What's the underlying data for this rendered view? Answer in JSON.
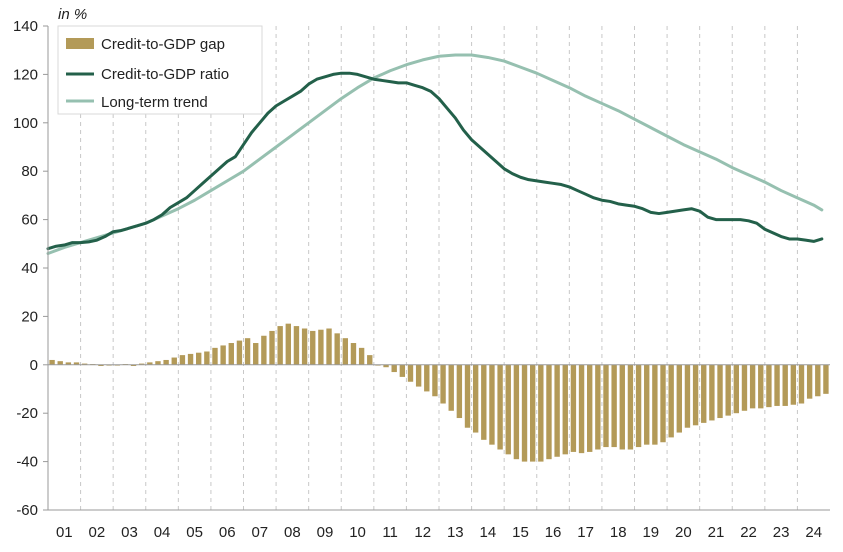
{
  "chart_data": {
    "type": "bar+line",
    "unit_label": "in %",
    "ylim": [
      -60,
      140
    ],
    "yticks": [
      -60,
      -40,
      -20,
      0,
      20,
      40,
      60,
      80,
      100,
      120,
      140
    ],
    "x_labels": [
      "01",
      "02",
      "03",
      "04",
      "05",
      "06",
      "07",
      "08",
      "09",
      "10",
      "11",
      "12",
      "13",
      "14",
      "15",
      "16",
      "17",
      "18",
      "19",
      "20",
      "21",
      "22",
      "23",
      "24"
    ],
    "x_range": [
      2001,
      2025
    ],
    "grid": "dashed vertical gridlines between years",
    "legend_position": "top-left",
    "colors": {
      "gap": "#b39a58",
      "ratio": "#23604a",
      "trend": "#96c0b0",
      "grid": "#c8c8c8",
      "axis": "#9a9a9a"
    },
    "series": [
      {
        "name": "Credit-to-GDP gap",
        "type": "bar",
        "color": "#b39a58",
        "x": [
          2001.0,
          2001.25,
          2001.5,
          2001.75,
          2002.0,
          2002.25,
          2002.5,
          2002.75,
          2003.0,
          2003.25,
          2003.5,
          2003.75,
          2004.0,
          2004.25,
          2004.5,
          2004.75,
          2005.0,
          2005.25,
          2005.5,
          2005.75,
          2006.0,
          2006.25,
          2006.5,
          2006.75,
          2007.0,
          2007.25,
          2007.5,
          2007.75,
          2008.0,
          2008.25,
          2008.5,
          2008.75,
          2009.0,
          2009.25,
          2009.5,
          2009.75,
          2010.0,
          2010.25,
          2010.5,
          2010.75,
          2011.0,
          2011.25,
          2011.5,
          2011.75,
          2012.0,
          2012.25,
          2012.5,
          2012.75,
          2013.0,
          2013.25,
          2013.5,
          2013.75,
          2014.0,
          2014.25,
          2014.5,
          2014.75,
          2015.0,
          2015.25,
          2015.5,
          2015.75,
          2016.0,
          2016.25,
          2016.5,
          2016.75,
          2017.0,
          2017.25,
          2017.5,
          2017.75,
          2018.0,
          2018.25,
          2018.5,
          2018.75,
          2019.0,
          2019.25,
          2019.5,
          2019.75,
          2020.0,
          2020.25,
          2020.5,
          2020.75,
          2021.0,
          2021.25,
          2021.5,
          2021.75,
          2022.0,
          2022.25,
          2022.5,
          2022.75,
          2023.0,
          2023.25,
          2023.5,
          2023.75,
          2024.0,
          2024.25,
          2024.5,
          2024.75
        ],
        "values": [
          2,
          1.5,
          1,
          1,
          0.5,
          0.3,
          -0.5,
          -0.3,
          0,
          0.3,
          -0.5,
          0.5,
          1,
          1.5,
          2,
          3,
          4,
          4.5,
          5,
          5.5,
          7,
          8,
          9,
          10,
          11,
          9,
          12,
          14,
          16,
          17,
          16,
          15,
          14,
          14.5,
          15,
          13,
          11,
          9,
          7,
          4,
          0,
          -1,
          -3,
          -5,
          -7,
          -9,
          -11,
          -13,
          -16,
          -19,
          -22,
          -26,
          -28,
          -31,
          -33,
          -35,
          -37,
          -39,
          -40,
          -40,
          -40,
          -39,
          -38,
          -37,
          -36,
          -36.5,
          -36,
          -35,
          -34,
          -34,
          -35,
          -35,
          -34,
          -33,
          -33,
          -32,
          -30,
          -28,
          -26,
          -25,
          -24,
          -23,
          -22,
          -21,
          -20,
          -19,
          -18,
          -18,
          -17.5,
          -17,
          -17,
          -16.5,
          -16,
          -14,
          -13,
          -12
        ]
      },
      {
        "name": "Credit-to-GDP ratio",
        "type": "line",
        "color": "#23604a",
        "x": [
          2001.0,
          2001.25,
          2001.5,
          2001.75,
          2002.0,
          2002.25,
          2002.5,
          2002.75,
          2003.0,
          2003.25,
          2003.5,
          2003.75,
          2004.0,
          2004.25,
          2004.5,
          2004.75,
          2005.0,
          2005.25,
          2005.5,
          2005.75,
          2006.0,
          2006.25,
          2006.5,
          2006.75,
          2007.0,
          2007.25,
          2007.5,
          2007.75,
          2008.0,
          2008.25,
          2008.5,
          2008.75,
          2009.0,
          2009.25,
          2009.5,
          2009.75,
          2010.0,
          2010.25,
          2010.5,
          2010.75,
          2011.0,
          2011.25,
          2011.5,
          2011.75,
          2012.0,
          2012.25,
          2012.5,
          2012.75,
          2013.0,
          2013.25,
          2013.5,
          2013.75,
          2014.0,
          2014.25,
          2014.5,
          2014.75,
          2015.0,
          2015.25,
          2015.5,
          2015.75,
          2016.0,
          2016.25,
          2016.5,
          2016.75,
          2017.0,
          2017.25,
          2017.5,
          2017.75,
          2018.0,
          2018.25,
          2018.5,
          2018.75,
          2019.0,
          2019.25,
          2019.5,
          2019.75,
          2020.0,
          2020.25,
          2020.5,
          2020.75,
          2021.0,
          2021.25,
          2021.5,
          2021.75,
          2022.0,
          2022.25,
          2022.5,
          2022.75,
          2023.0,
          2023.25,
          2023.5,
          2023.75,
          2024.0,
          2024.25,
          2024.5,
          2024.75
        ],
        "values": [
          48,
          49,
          49.5,
          50.5,
          50.5,
          50.8,
          51.5,
          53,
          55,
          55.5,
          56.5,
          57.5,
          58.5,
          60,
          62,
          65,
          67,
          69,
          72,
          75,
          78,
          81,
          84,
          86,
          91,
          96,
          100,
          104,
          107,
          109,
          111,
          113,
          116,
          118,
          119,
          120,
          120.5,
          120.5,
          120,
          119,
          118,
          117.5,
          117,
          116.5,
          116.5,
          115.5,
          114.5,
          113,
          110,
          106,
          102,
          97,
          93,
          90,
          87,
          84,
          81,
          79,
          77.5,
          76.5,
          76,
          75.5,
          75,
          74.5,
          73.5,
          72,
          70.5,
          69,
          68,
          67.5,
          66.5,
          66,
          65.5,
          64.5,
          63,
          62.5,
          63,
          63.5,
          64,
          64.5,
          63.5,
          61,
          60,
          60,
          60,
          60,
          59.5,
          58.5,
          56,
          54.5,
          53,
          52,
          52,
          51.5,
          51,
          52
        ]
      },
      {
        "name": "Long-term trend",
        "type": "line",
        "color": "#96c0b0",
        "x": [
          2001.0,
          2001.5,
          2002.0,
          2002.5,
          2003.0,
          2003.5,
          2004.0,
          2004.5,
          2005.0,
          2005.5,
          2006.0,
          2006.5,
          2007.0,
          2007.5,
          2008.0,
          2008.5,
          2009.0,
          2009.5,
          2010.0,
          2010.5,
          2011.0,
          2011.5,
          2012.0,
          2012.5,
          2013.0,
          2013.5,
          2014.0,
          2014.5,
          2015.0,
          2015.5,
          2016.0,
          2016.5,
          2017.0,
          2017.5,
          2018.0,
          2018.5,
          2019.0,
          2019.5,
          2020.0,
          2020.5,
          2021.0,
          2021.5,
          2022.0,
          2022.5,
          2023.0,
          2023.5,
          2024.0,
          2024.5,
          2024.75
        ],
        "values": [
          46,
          48.5,
          50.5,
          52.5,
          54.5,
          56.5,
          58.5,
          61.5,
          64.5,
          68,
          72,
          76,
          80,
          85,
          90,
          95,
          100,
          105,
          110,
          114.5,
          118.5,
          121.5,
          124,
          126,
          127.5,
          128,
          128,
          127,
          125.5,
          123,
          120.5,
          117.5,
          114.5,
          111,
          108,
          105,
          101.5,
          98,
          94.5,
          91,
          88,
          85,
          81.5,
          78.5,
          75.5,
          72,
          69,
          66,
          64
        ]
      }
    ]
  }
}
